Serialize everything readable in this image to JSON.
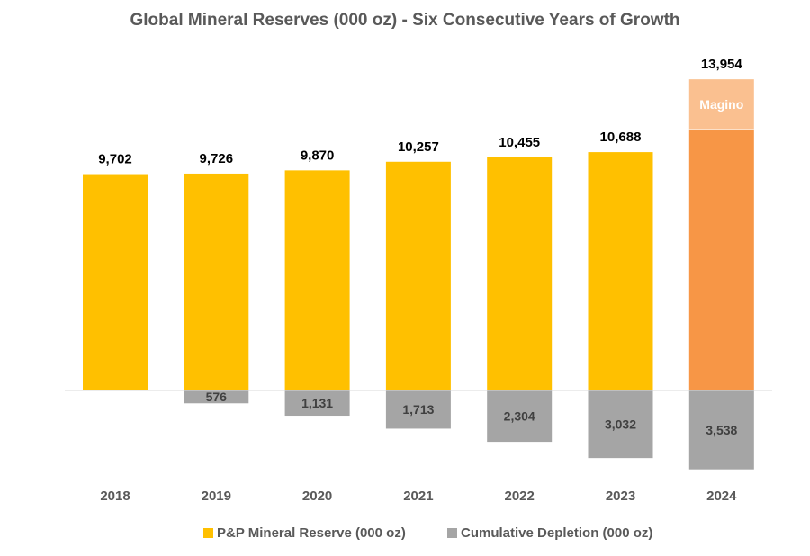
{
  "chart_data": {
    "type": "bar",
    "title": "Global Mineral Reserves (000 oz) - Six Consecutive Years of Growth",
    "xlabel": "",
    "ylabel": "",
    "grid": false,
    "categories": [
      "2018",
      "2019",
      "2020",
      "2021",
      "2022",
      "2023",
      "2024"
    ],
    "series": [
      {
        "name": "P&P Mineral Reserve (000 oz)",
        "color": "#FFC000",
        "values": [
          9702,
          9726,
          9870,
          10257,
          10455,
          10688,
          13954
        ],
        "labels": [
          "9,702",
          "9,726",
          "9,870",
          "10,257",
          "10,455",
          "10,688",
          "13,954"
        ]
      },
      {
        "name": "Cumulative Depletion (000 oz)",
        "color": "#A5A5A5",
        "values": [
          0,
          -576,
          -1131,
          -1713,
          -2304,
          -3032,
          -3538
        ],
        "labels": [
          "",
          "576",
          "1,131",
          "1,713",
          "2,304",
          "3,032",
          "3,538"
        ]
      }
    ],
    "segment_2024": {
      "base_value": 11700,
      "base_color": "#F79646",
      "top_label": "Magino",
      "top_color": "#FAC090"
    },
    "legend_position": "bottom"
  }
}
